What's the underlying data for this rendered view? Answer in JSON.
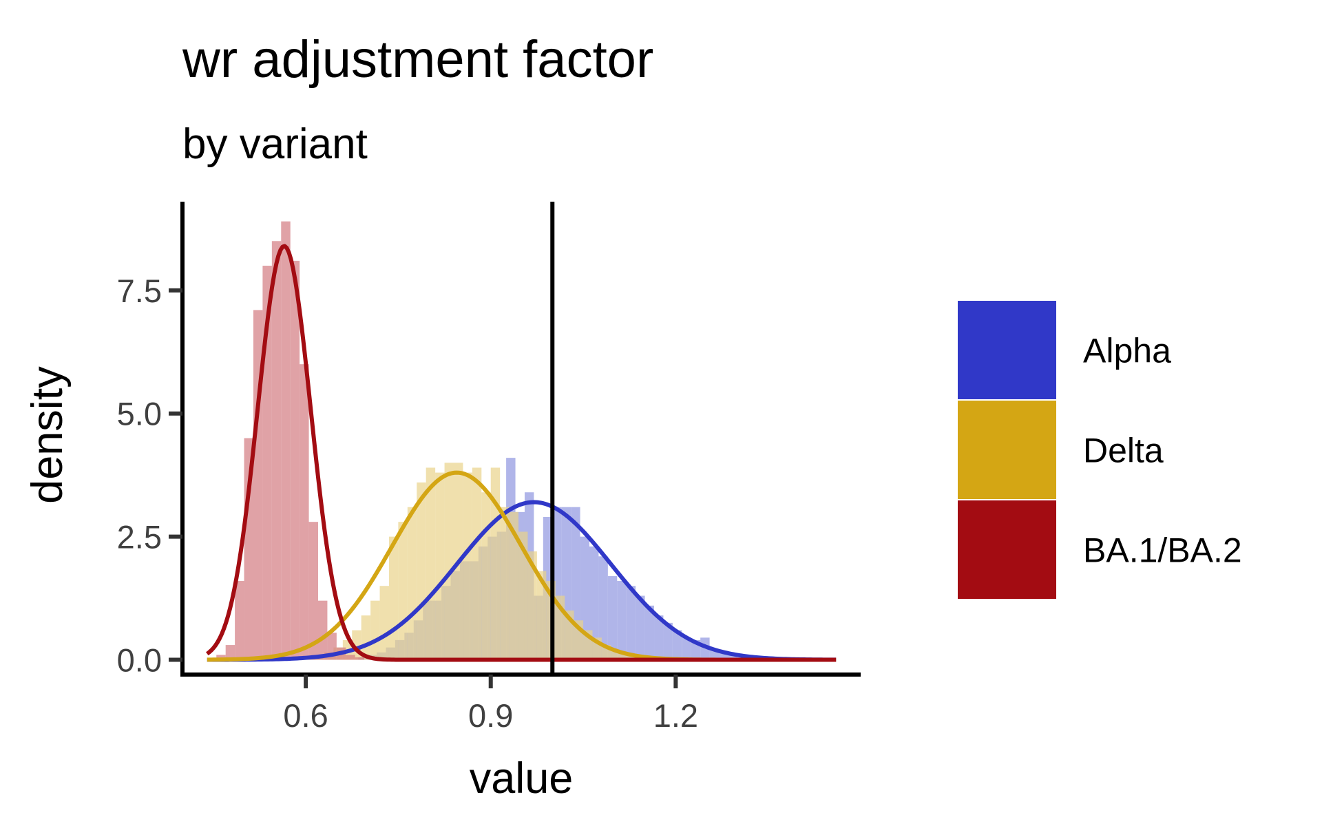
{
  "chart_data": {
    "type": "histogram+density",
    "title": "wr adjustment factor",
    "subtitle": "by variant",
    "xlabel": "value",
    "ylabel": "density",
    "xlim": [
      0.4,
      1.5
    ],
    "ylim": [
      -0.3,
      9.3
    ],
    "x_ticks": [
      0.6,
      0.9,
      1.2
    ],
    "x_tick_labels": [
      "0.6",
      "0.9",
      "1.2"
    ],
    "y_ticks": [
      0.0,
      2.5,
      5.0,
      7.5
    ],
    "y_tick_labels": [
      "0.0",
      "2.5",
      "5.0",
      "7.5"
    ],
    "reference_line_x": 1.0,
    "grid": false,
    "legend_position": "right",
    "legend": {
      "items": [
        {
          "label": "Alpha",
          "color": "#3038C8"
        },
        {
          "label": "Delta",
          "color": "#D4A614"
        },
        {
          "label": "BA.1/BA.2",
          "color": "#A30C12"
        }
      ]
    },
    "series": [
      {
        "name": "Alpha",
        "color": "#3038C8",
        "fill_color": "#8F95E0",
        "histogram": {
          "bin_width": 0.015,
          "bins": [
            [
              0.67,
              0.0
            ],
            [
              0.685,
              0.05
            ],
            [
              0.7,
              0.1
            ],
            [
              0.715,
              0.15
            ],
            [
              0.73,
              0.25
            ],
            [
              0.745,
              0.4
            ],
            [
              0.76,
              0.55
            ],
            [
              0.775,
              0.8
            ],
            [
              0.79,
              1.2
            ],
            [
              0.805,
              1.2
            ],
            [
              0.82,
              1.5
            ],
            [
              0.835,
              1.8
            ],
            [
              0.85,
              2.0
            ],
            [
              0.865,
              2.0
            ],
            [
              0.88,
              2.3
            ],
            [
              0.895,
              2.5
            ],
            [
              0.91,
              2.6
            ],
            [
              0.925,
              4.1
            ],
            [
              0.94,
              3.0
            ],
            [
              0.955,
              3.4
            ],
            [
              0.97,
              1.3
            ],
            [
              0.985,
              2.9
            ],
            [
              1.0,
              3.1
            ],
            [
              1.015,
              3.1
            ],
            [
              1.03,
              3.1
            ],
            [
              1.045,
              2.5
            ],
            [
              1.06,
              2.3
            ],
            [
              1.075,
              2.1
            ],
            [
              1.09,
              1.7
            ],
            [
              1.105,
              1.6
            ],
            [
              1.12,
              1.5
            ],
            [
              1.135,
              1.3
            ],
            [
              1.15,
              1.1
            ],
            [
              1.165,
              0.9
            ],
            [
              1.18,
              0.75
            ],
            [
              1.195,
              0.6
            ],
            [
              1.21,
              0.45
            ],
            [
              1.225,
              0.4
            ],
            [
              1.24,
              0.45
            ],
            [
              1.255,
              0.2
            ],
            [
              1.27,
              0.15
            ],
            [
              1.285,
              0.1
            ],
            [
              1.3,
              0.05
            ],
            [
              1.315,
              0.05
            ],
            [
              1.33,
              0.02
            ]
          ]
        },
        "density": {
          "mean": 0.97,
          "sd": 0.125,
          "peak": 3.2
        }
      },
      {
        "name": "Delta",
        "color": "#D4A614",
        "fill_color": "#EAD38A",
        "histogram": {
          "bin_width": 0.015,
          "bins": [
            [
              0.6,
              0.05
            ],
            [
              0.615,
              0.1
            ],
            [
              0.63,
              0.15
            ],
            [
              0.645,
              0.25
            ],
            [
              0.66,
              0.4
            ],
            [
              0.675,
              0.6
            ],
            [
              0.69,
              0.9
            ],
            [
              0.705,
              1.2
            ],
            [
              0.72,
              1.5
            ],
            [
              0.735,
              2.5
            ],
            [
              0.75,
              2.8
            ],
            [
              0.765,
              3.1
            ],
            [
              0.78,
              3.6
            ],
            [
              0.795,
              3.9
            ],
            [
              0.81,
              3.8
            ],
            [
              0.825,
              4.0
            ],
            [
              0.84,
              4.0
            ],
            [
              0.855,
              3.8
            ],
            [
              0.87,
              3.9
            ],
            [
              0.885,
              3.4
            ],
            [
              0.9,
              3.9
            ],
            [
              0.915,
              3.1
            ],
            [
              0.93,
              3.0
            ],
            [
              0.945,
              2.6
            ],
            [
              0.96,
              2.2
            ],
            [
              0.975,
              1.8
            ],
            [
              0.99,
              1.6
            ],
            [
              1.005,
              1.3
            ],
            [
              1.02,
              1.0
            ],
            [
              1.035,
              0.8
            ],
            [
              1.05,
              0.6
            ],
            [
              1.065,
              0.45
            ],
            [
              1.08,
              0.3
            ],
            [
              1.095,
              0.2
            ],
            [
              1.11,
              0.15
            ],
            [
              1.125,
              0.1
            ],
            [
              1.14,
              0.05
            ],
            [
              1.155,
              0.02
            ]
          ]
        },
        "density": {
          "mean": 0.845,
          "sd": 0.105,
          "peak": 3.8
        }
      },
      {
        "name": "BA.1/BA.2",
        "color": "#A30C12",
        "fill_color": "#D37A80",
        "histogram": {
          "bin_width": 0.015,
          "bins": [
            [
              0.455,
              0.1
            ],
            [
              0.47,
              0.3
            ],
            [
              0.485,
              1.6
            ],
            [
              0.5,
              4.5
            ],
            [
              0.515,
              7.1
            ],
            [
              0.53,
              8.0
            ],
            [
              0.545,
              8.5
            ],
            [
              0.56,
              8.9
            ],
            [
              0.575,
              8.1
            ],
            [
              0.59,
              6.0
            ],
            [
              0.605,
              2.8
            ],
            [
              0.62,
              1.2
            ],
            [
              0.635,
              0.55
            ],
            [
              0.65,
              0.25
            ],
            [
              0.665,
              0.1
            ],
            [
              0.68,
              0.05
            ]
          ]
        },
        "density": {
          "mean": 0.565,
          "sd": 0.043,
          "peak": 8.4
        }
      }
    ]
  }
}
